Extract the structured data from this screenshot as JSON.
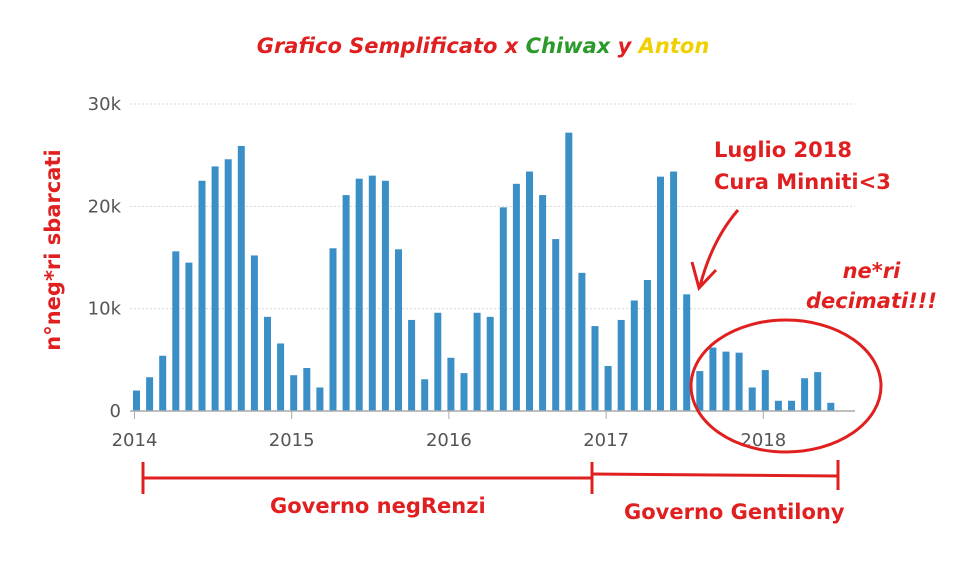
{
  "title": {
    "part1": "Grafico Semplificato x ",
    "part2": "Chiwax",
    "part3": " y ",
    "part4": "Anton"
  },
  "ylabel": "n°neg*ri sbarcati",
  "annotation_luglio": {
    "line1": "Luglio 2018",
    "line2": "Cura Minniti<3"
  },
  "annotation_decimati": {
    "line1": "ne*ri",
    "line2": "decimati!!!"
  },
  "governo_1": "Governo negRenzi",
  "governo_2": "Governo Gentilony",
  "colors": {
    "bar": "#3a8fc6",
    "annotation": "#e02020",
    "grid": "#d8d8d8"
  },
  "chart_data": {
    "type": "bar",
    "x_start": "2014-01",
    "x_ticks": [
      "2014",
      "2015",
      "2016",
      "2017",
      "2018"
    ],
    "y_ticks": [
      "0",
      "10k",
      "20k",
      "30k"
    ],
    "ylim": [
      0,
      30000
    ],
    "grid": true,
    "values": [
      2000,
      3300,
      5400,
      15600,
      14500,
      22500,
      23900,
      24600,
      25900,
      15200,
      9200,
      6600,
      3500,
      4200,
      2300,
      15900,
      21100,
      22700,
      23000,
      22500,
      15800,
      8900,
      3100,
      9600,
      5200,
      3700,
      9600,
      9200,
      19900,
      22200,
      23400,
      21100,
      16800,
      27200,
      13500,
      8300,
      4400,
      8900,
      10800,
      12800,
      22900,
      23400,
      11400,
      3900,
      6200,
      5800,
      5700,
      2300,
      4000,
      1000,
      1000,
      3200,
      3800,
      800
    ]
  }
}
